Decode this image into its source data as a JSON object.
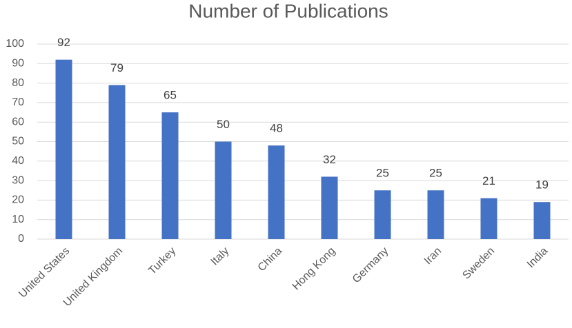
{
  "chart_data": {
    "type": "bar",
    "title": "Number of Publications",
    "categories": [
      "United States",
      "United Kingdom",
      "Turkey",
      "Italy",
      "China",
      "Hong Kong",
      "Germany",
      "Iran",
      "Sweden",
      "India"
    ],
    "values": [
      92,
      79,
      65,
      50,
      48,
      32,
      25,
      25,
      21,
      19
    ],
    "color": "#4472c4",
    "ylim": [
      0,
      100
    ],
    "yticks": [
      0,
      10,
      20,
      30,
      40,
      50,
      60,
      70,
      80,
      90,
      100
    ],
    "grid": true
  }
}
